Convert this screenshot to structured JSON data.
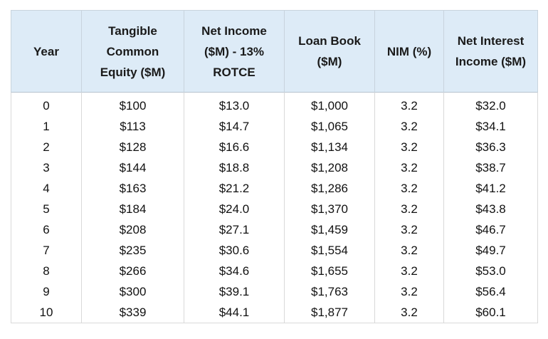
{
  "table": {
    "headers": [
      {
        "lines": [
          "Year"
        ]
      },
      {
        "lines": [
          "Tangible",
          "Common",
          "Equity ($M)"
        ]
      },
      {
        "lines": [
          "Net Income",
          "($M) - 13%",
          "ROTCE"
        ]
      },
      {
        "lines": [
          "Loan Book",
          "($M)"
        ]
      },
      {
        "lines": [
          "NIM (%)"
        ]
      },
      {
        "lines": [
          "Net Interest",
          "Income ($M)"
        ]
      }
    ],
    "rows": [
      [
        "0",
        "$100",
        "$13.0",
        "$1,000",
        "3.2",
        "$32.0"
      ],
      [
        "1",
        "$113",
        "$14.7",
        "$1,065",
        "3.2",
        "$34.1"
      ],
      [
        "2",
        "$128",
        "$16.6",
        "$1,134",
        "3.2",
        "$36.3"
      ],
      [
        "3",
        "$144",
        "$18.8",
        "$1,208",
        "3.2",
        "$38.7"
      ],
      [
        "4",
        "$163",
        "$21.2",
        "$1,286",
        "3.2",
        "$41.2"
      ],
      [
        "5",
        "$184",
        "$24.0",
        "$1,370",
        "3.2",
        "$43.8"
      ],
      [
        "6",
        "$208",
        "$27.1",
        "$1,459",
        "3.2",
        "$46.7"
      ],
      [
        "7",
        "$235",
        "$30.6",
        "$1,554",
        "3.2",
        "$49.7"
      ],
      [
        "8",
        "$266",
        "$34.6",
        "$1,655",
        "3.2",
        "$53.0"
      ],
      [
        "9",
        "$300",
        "$39.1",
        "$1,763",
        "3.2",
        "$56.4"
      ],
      [
        "10",
        "$339",
        "$44.1",
        "$1,877",
        "3.2",
        "$60.1"
      ]
    ]
  },
  "colors": {
    "header_background": "#ddebf7",
    "grid_line": "#d9d9d9"
  }
}
